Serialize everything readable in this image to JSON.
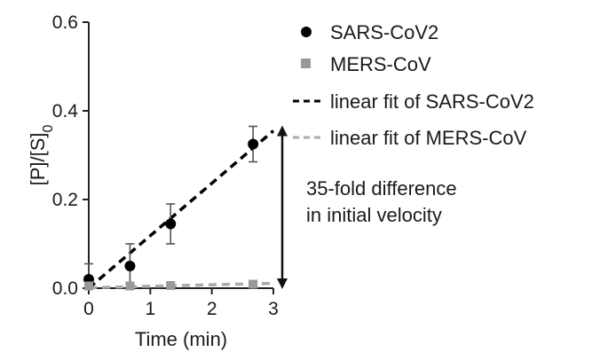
{
  "chart_data": {
    "type": "scatter",
    "xlabel": "Time (min)",
    "ylabel_main": "[P]/[S]",
    "ylabel_sub": "0",
    "xlim": [
      0,
      3
    ],
    "ylim": [
      0,
      0.6
    ],
    "x_ticks": [
      "0",
      "1",
      "2",
      "3"
    ],
    "y_ticks": [
      "0.0",
      "0.2",
      "0.4",
      "0.6"
    ],
    "grid": false,
    "legend_position": "right",
    "series": [
      {
        "name": "SARS-CoV2",
        "marker": "circle",
        "color": "#000000",
        "points": [
          {
            "x": 0,
            "y": 0.02,
            "err": 0.035
          },
          {
            "x": 0.67,
            "y": 0.05,
            "err": 0.05
          },
          {
            "x": 1.33,
            "y": 0.145,
            "err": 0.045
          },
          {
            "x": 2.67,
            "y": 0.325,
            "err": 0.04
          }
        ]
      },
      {
        "name": "MERS-CoV",
        "marker": "square",
        "color": "#999999",
        "points": [
          {
            "x": 0,
            "y": 0.005,
            "err": 0.01
          },
          {
            "x": 0.67,
            "y": 0.005,
            "err": 0.005
          },
          {
            "x": 1.33,
            "y": 0.006,
            "err": 0.005
          },
          {
            "x": 2.67,
            "y": 0.009,
            "err": 0.005
          }
        ]
      }
    ],
    "fits": [
      {
        "name": "linear fit of SARS-CoV2",
        "color": "#000000",
        "x": [
          0,
          3
        ],
        "y": [
          0,
          0.355
        ]
      },
      {
        "name": "linear fit of MERS-CoV",
        "color": "#aaaaaa",
        "x": [
          0,
          3
        ],
        "y": [
          0.001,
          0.011
        ]
      }
    ],
    "annotation": {
      "line1": "35-fold difference",
      "line2": "in initial velocity",
      "arrow_y": [
        0.01,
        0.355
      ]
    }
  }
}
